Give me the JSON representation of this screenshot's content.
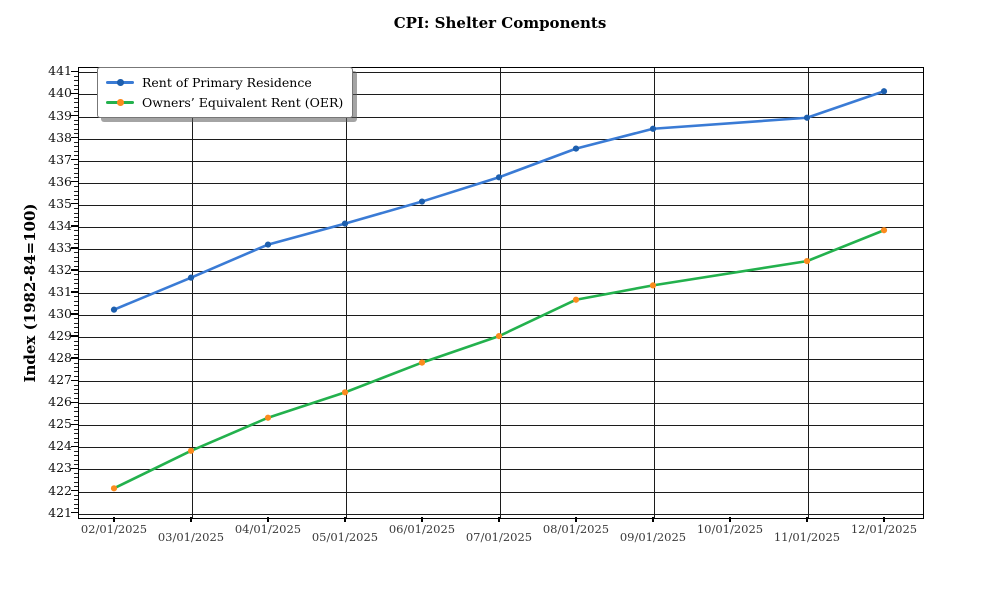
{
  "title": "CPI: Shelter Components",
  "y_axis": {
    "label": "Index (1982-84=100)",
    "tick_min": 421,
    "tick_max": 441,
    "tick_step": 1,
    "minor_ticks_per_unit": 5
  },
  "x_axis": {
    "tick_labels": [
      "02/01/2025",
      "03/01/2025",
      "04/01/2025",
      "05/01/2025",
      "06/01/2025",
      "07/01/2025",
      "08/01/2025",
      "09/01/2025",
      "10/01/2025",
      "11/01/2025",
      "12/01/2025"
    ],
    "gridline_ticks": [
      "03/01/2025",
      "05/01/2025",
      "07/01/2025",
      "09/01/2025",
      "11/01/2025"
    ]
  },
  "legend": {
    "position": "upper left",
    "entries": [
      {
        "label": "Rent of Primary Residence",
        "line_color": "#3a7bd5",
        "marker_color": "#1d5fae"
      },
      {
        "label": "Owners’ Equivalent Rent (OER)",
        "line_color": "#23b14d",
        "marker_color": "#fb8b1e"
      }
    ]
  },
  "chart_data": {
    "type": "line",
    "title": "CPI: Shelter Components",
    "xlabel": "",
    "ylabel": "Index (1982-84=100)",
    "ylim": [
      420.8,
      441.2
    ],
    "grid": true,
    "note": "No data point at 10/01/2025; lines connect 09/01/2025 directly to 11/01/2025",
    "x": [
      "02/01/2025",
      "03/01/2025",
      "04/01/2025",
      "05/01/2025",
      "06/01/2025",
      "07/01/2025",
      "08/01/2025",
      "09/01/2025",
      "11/01/2025",
      "12/01/2025"
    ],
    "series": [
      {
        "name": "Rent of Primary Residence",
        "color": "#3a7bd5",
        "marker_color": "#1d5fae",
        "values": [
          430.2,
          431.65,
          433.15,
          434.1,
          435.1,
          436.2,
          437.5,
          438.4,
          438.9,
          440.1
        ]
      },
      {
        "name": "Owners’ Equivalent Rent (OER)",
        "color": "#23b14d",
        "marker_color": "#fb8b1e",
        "values": [
          422.1,
          423.8,
          425.3,
          426.45,
          427.8,
          429.0,
          430.65,
          431.3,
          432.4,
          433.8
        ]
      }
    ]
  }
}
